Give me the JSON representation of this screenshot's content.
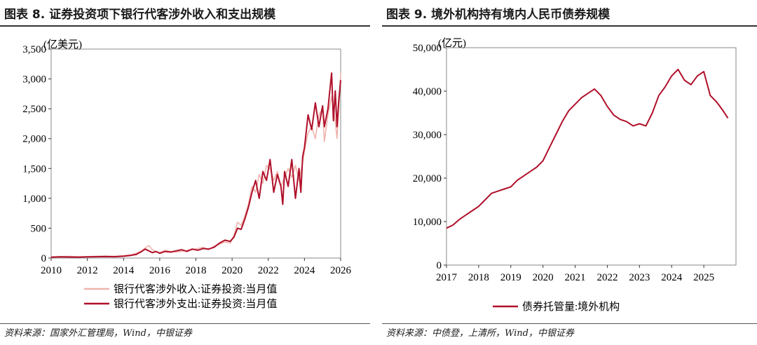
{
  "chart_data": [
    {
      "type": "line",
      "title": "图表 8. 证券投资项下银行代客涉外收入和支出规模",
      "unit_label": "(亿美元)",
      "ylim": [
        0,
        3500
      ],
      "yticks": [
        "0",
        "500",
        "1,000",
        "1,500",
        "2,000",
        "2,500",
        "3,000",
        "3,500"
      ],
      "xlim": [
        2010,
        2026
      ],
      "xticks": [
        "2010",
        "2012",
        "2014",
        "2016",
        "2018",
        "2020",
        "2022",
        "2024",
        "2026"
      ],
      "grid": false,
      "legend": "bottom",
      "series": [
        {
          "name": "银行代客涉外收入:证券投资:当月值",
          "color": "#f0b4ad",
          "points": [
            [
              2010.0,
              20
            ],
            [
              2010.5,
              25
            ],
            [
              2011.0,
              28
            ],
            [
              2011.5,
              22
            ],
            [
              2012.0,
              25
            ],
            [
              2012.5,
              30
            ],
            [
              2013.0,
              35
            ],
            [
              2013.5,
              30
            ],
            [
              2014.0,
              40
            ],
            [
              2014.4,
              55
            ],
            [
              2014.7,
              80
            ],
            [
              2015.0,
              120
            ],
            [
              2015.2,
              170
            ],
            [
              2015.4,
              210
            ],
            [
              2015.6,
              140
            ],
            [
              2015.8,
              100
            ],
            [
              2016.0,
              90
            ],
            [
              2016.3,
              130
            ],
            [
              2016.6,
              110
            ],
            [
              2016.9,
              100
            ],
            [
              2017.2,
              110
            ],
            [
              2017.5,
              130
            ],
            [
              2017.8,
              140
            ],
            [
              2018.1,
              160
            ],
            [
              2018.4,
              180
            ],
            [
              2018.7,
              140
            ],
            [
              2019.0,
              200
            ],
            [
              2019.3,
              230
            ],
            [
              2019.6,
              270
            ],
            [
              2019.9,
              250
            ],
            [
              2020.1,
              380
            ],
            [
              2020.3,
              600
            ],
            [
              2020.5,
              550
            ],
            [
              2020.7,
              700
            ],
            [
              2020.9,
              900
            ],
            [
              2021.1,
              1200
            ],
            [
              2021.3,
              1100
            ],
            [
              2021.5,
              1400
            ],
            [
              2021.7,
              1250
            ],
            [
              2021.9,
              1550
            ],
            [
              2022.1,
              1500
            ],
            [
              2022.3,
              1300
            ],
            [
              2022.5,
              1450
            ],
            [
              2022.7,
              1200
            ],
            [
              2022.9,
              1350
            ],
            [
              2023.1,
              1500
            ],
            [
              2023.3,
              1350
            ],
            [
              2023.5,
              1550
            ],
            [
              2023.7,
              1300
            ],
            [
              2023.9,
              1600
            ],
            [
              2024.0,
              1800
            ],
            [
              2024.2,
              2100
            ],
            [
              2024.4,
              2200
            ],
            [
              2024.6,
              2000
            ],
            [
              2024.8,
              2400
            ],
            [
              2025.0,
              2500
            ],
            [
              2025.1,
              1950
            ],
            [
              2025.3,
              2400
            ],
            [
              2025.5,
              2700
            ],
            [
              2025.7,
              2300
            ],
            [
              2025.8,
              2000
            ],
            [
              2025.9,
              2500
            ],
            [
              2026.0,
              3100
            ]
          ]
        },
        {
          "name": "银行代客涉外支出:证券投资:当月值",
          "color": "#b0102a",
          "points": [
            [
              2010.0,
              15
            ],
            [
              2010.5,
              20
            ],
            [
              2011.0,
              18
            ],
            [
              2011.5,
              15
            ],
            [
              2012.0,
              20
            ],
            [
              2012.5,
              22
            ],
            [
              2013.0,
              25
            ],
            [
              2013.5,
              22
            ],
            [
              2014.0,
              30
            ],
            [
              2014.4,
              45
            ],
            [
              2014.7,
              60
            ],
            [
              2015.0,
              110
            ],
            [
              2015.2,
              150
            ],
            [
              2015.4,
              120
            ],
            [
              2015.6,
              90
            ],
            [
              2015.8,
              110
            ],
            [
              2016.0,
              80
            ],
            [
              2016.3,
              110
            ],
            [
              2016.6,
              100
            ],
            [
              2016.9,
              120
            ],
            [
              2017.2,
              140
            ],
            [
              2017.5,
              110
            ],
            [
              2017.8,
              150
            ],
            [
              2018.1,
              130
            ],
            [
              2018.4,
              160
            ],
            [
              2018.7,
              150
            ],
            [
              2019.0,
              180
            ],
            [
              2019.3,
              250
            ],
            [
              2019.6,
              300
            ],
            [
              2019.9,
              280
            ],
            [
              2020.1,
              350
            ],
            [
              2020.3,
              500
            ],
            [
              2020.5,
              480
            ],
            [
              2020.7,
              650
            ],
            [
              2020.9,
              850
            ],
            [
              2021.1,
              1100
            ],
            [
              2021.3,
              1300
            ],
            [
              2021.5,
              1000
            ],
            [
              2021.7,
              1450
            ],
            [
              2021.9,
              1300
            ],
            [
              2022.1,
              1650
            ],
            [
              2022.3,
              1100
            ],
            [
              2022.5,
              1400
            ],
            [
              2022.7,
              1200
            ],
            [
              2022.8,
              900
            ],
            [
              2022.9,
              1450
            ],
            [
              2023.1,
              1200
            ],
            [
              2023.3,
              1650
            ],
            [
              2023.5,
              1000
            ],
            [
              2023.7,
              1500
            ],
            [
              2023.8,
              1100
            ],
            [
              2023.9,
              1700
            ],
            [
              2024.0,
              1850
            ],
            [
              2024.2,
              2400
            ],
            [
              2024.4,
              2150
            ],
            [
              2024.6,
              2600
            ],
            [
              2024.8,
              2200
            ],
            [
              2025.0,
              2550
            ],
            [
              2025.1,
              2200
            ],
            [
              2025.3,
              2500
            ],
            [
              2025.5,
              3100
            ],
            [
              2025.6,
              2300
            ],
            [
              2025.7,
              2800
            ],
            [
              2025.8,
              2200
            ],
            [
              2025.9,
              2650
            ],
            [
              2026.0,
              2980
            ]
          ]
        }
      ],
      "source": "资料来源：国家外汇管理局，Wind，中银证券"
    },
    {
      "type": "line",
      "title": "图表 9. 境外机构持有境内人民币债券规模",
      "unit_label": "(亿元)",
      "ylim": [
        0,
        50000
      ],
      "yticks": [
        "0",
        "10,000",
        "20,000",
        "30,000",
        "40,000",
        "50,000"
      ],
      "xlim": [
        2017,
        2026
      ],
      "xticks": [
        "2017",
        "2018",
        "2019",
        "2020",
        "2021",
        "2022",
        "2023",
        "2024",
        "2025"
      ],
      "grid": false,
      "legend": "bottom",
      "series": [
        {
          "name": "债券托管量:境外机构",
          "color": "#b0102a",
          "points": [
            [
              2017.0,
              8500
            ],
            [
              2017.2,
              9200
            ],
            [
              2017.4,
              10500
            ],
            [
              2017.6,
              11500
            ],
            [
              2017.8,
              12500
            ],
            [
              2018.0,
              13500
            ],
            [
              2018.2,
              15000
            ],
            [
              2018.4,
              16500
            ],
            [
              2018.6,
              17000
            ],
            [
              2018.8,
              17500
            ],
            [
              2019.0,
              18000
            ],
            [
              2019.2,
              19500
            ],
            [
              2019.4,
              20500
            ],
            [
              2019.6,
              21500
            ],
            [
              2019.8,
              22500
            ],
            [
              2020.0,
              24000
            ],
            [
              2020.2,
              27000
            ],
            [
              2020.4,
              30000
            ],
            [
              2020.6,
              33000
            ],
            [
              2020.8,
              35500
            ],
            [
              2021.0,
              37000
            ],
            [
              2021.2,
              38500
            ],
            [
              2021.4,
              39500
            ],
            [
              2021.6,
              40500
            ],
            [
              2021.8,
              39000
            ],
            [
              2022.0,
              36500
            ],
            [
              2022.2,
              34500
            ],
            [
              2022.4,
              33500
            ],
            [
              2022.6,
              33000
            ],
            [
              2022.8,
              32000
            ],
            [
              2023.0,
              32500
            ],
            [
              2023.2,
              32000
            ],
            [
              2023.4,
              35000
            ],
            [
              2023.6,
              39000
            ],
            [
              2023.8,
              41000
            ],
            [
              2024.0,
              43500
            ],
            [
              2024.2,
              45000
            ],
            [
              2024.4,
              42500
            ],
            [
              2024.6,
              41500
            ],
            [
              2024.8,
              43500
            ],
            [
              2025.0,
              44500
            ],
            [
              2025.2,
              39000
            ],
            [
              2025.4,
              37500
            ],
            [
              2025.6,
              35500
            ],
            [
              2025.75,
              33800
            ]
          ]
        }
      ],
      "source": "资料来源：中债登，上清所，Wind，中银证券"
    }
  ]
}
